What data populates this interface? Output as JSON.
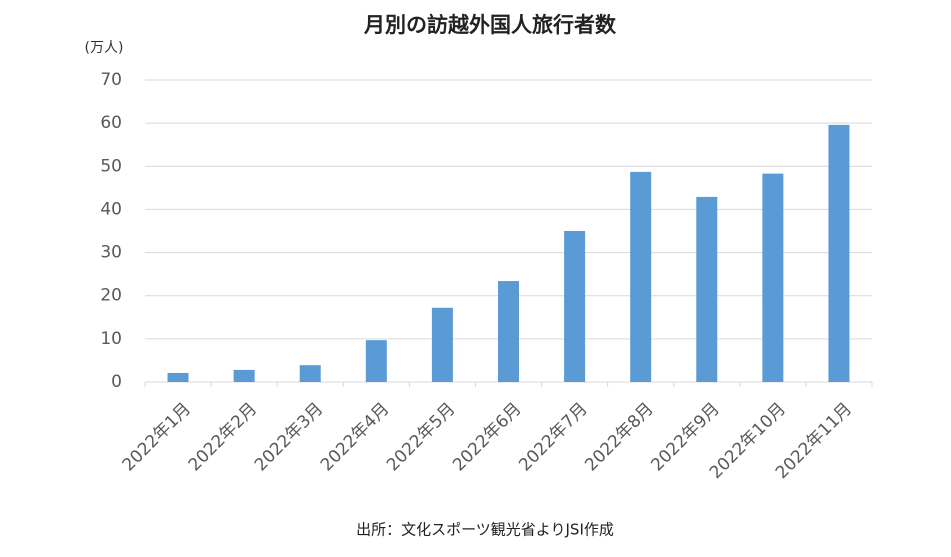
{
  "chart_data": {
    "type": "bar",
    "title": "月別の訪越外国人旅行者数",
    "y_axis_label": "(万人)",
    "categories": [
      "2022年1月",
      "2022年2月",
      "2022年3月",
      "2022年4月",
      "2022年5月",
      "2022年6月",
      "2022年7月",
      "2022年8月",
      "2022年9月",
      "2022年10月",
      "2022年11月"
    ],
    "values": [
      2.1,
      2.8,
      3.9,
      9.7,
      17.2,
      23.4,
      35.0,
      48.7,
      42.9,
      48.3,
      59.6
    ],
    "color": "#5b9bd5",
    "ylim": [
      0,
      70
    ],
    "yticks": [
      0,
      10,
      20,
      30,
      40,
      50,
      60,
      70
    ],
    "grid": true,
    "source": "出所：文化スポーツ観光省よりJSI作成"
  }
}
